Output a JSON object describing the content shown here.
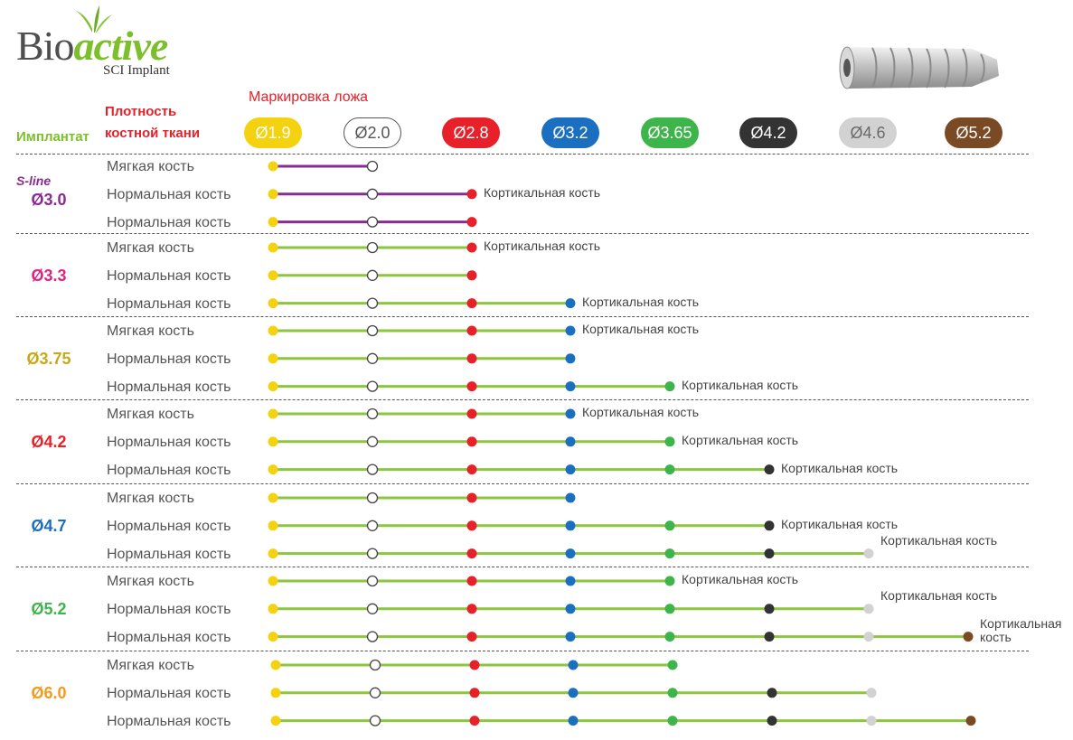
{
  "logo": {
    "word_bio": "Bio",
    "word_active": "active",
    "subtitle": "SCI Implant"
  },
  "headers": {
    "marking": "Маркировка ложа",
    "density_line1": "Плотность",
    "density_line2": "костной ткани",
    "implant": "Имплантат"
  },
  "drills": [
    {
      "label": "Ø1.9",
      "color": "#f5d20f",
      "text_color": "#ffffff"
    },
    {
      "label": "Ø2.0",
      "color": "#ffffff",
      "text_color": "#555555",
      "border": "#555555"
    },
    {
      "label": "Ø2.8",
      "color": "#e8202a",
      "text_color": "#ffffff"
    },
    {
      "label": "Ø3.2",
      "color": "#1b6fc0",
      "text_color": "#ffffff"
    },
    {
      "label": "Ø3.65",
      "color": "#3db54a",
      "text_color": "#ffffff"
    },
    {
      "label": "Ø4.2",
      "color": "#333333",
      "text_color": "#ffffff"
    },
    {
      "label": "Ø4.6",
      "color": "#d2d2d2",
      "text_color": "#6a6a6a"
    },
    {
      "label": "Ø5.2",
      "color": "#7a4a24",
      "text_color": "#ffffff"
    }
  ],
  "groups": [
    {
      "label": "Ø3.0",
      "prefix": "S-line",
      "color": "#8a2b93",
      "line_color": "#8a2b93",
      "rows": [
        {
          "bone": "Мягкая кость",
          "drills": 2,
          "cortical": ""
        },
        {
          "bone": "Нормальная кость",
          "drills": 3,
          "cortical": "Кортикальная кость"
        },
        {
          "bone": "Нормальная кость",
          "drills": 3,
          "cortical": ""
        }
      ]
    },
    {
      "label": "Ø3.3",
      "color": "#e0237d",
      "line_color": "#8cc63f",
      "rows": [
        {
          "bone": "Мягкая кость",
          "drills": 3,
          "cortical": "Кортикальная кость"
        },
        {
          "bone": "Нормальная кость",
          "drills": 3,
          "cortical": ""
        },
        {
          "bone": "Нормальная кость",
          "drills": 4,
          "cortical": "Кортикальная кость"
        }
      ]
    },
    {
      "label": "Ø3.75",
      "color": "#c9a818",
      "line_color": "#8cc63f",
      "rows": [
        {
          "bone": "Мягкая кость",
          "drills": 4,
          "cortical": "Кортикальная кость"
        },
        {
          "bone": "Нормальная кость",
          "drills": 4,
          "cortical": ""
        },
        {
          "bone": "Нормальная кость",
          "drills": 5,
          "cortical": "Кортикальная кость"
        }
      ]
    },
    {
      "label": "Ø4.2",
      "color": "#e8202a",
      "line_color": "#8cc63f",
      "rows": [
        {
          "bone": "Мягкая кость",
          "drills": 4,
          "cortical": "Кортикальная кость"
        },
        {
          "bone": "Нормальная кость",
          "drills": 5,
          "cortical": "Кортикальная кость"
        },
        {
          "bone": "Нормальная кость",
          "drills": 6,
          "cortical": "Кортикальная кость"
        }
      ]
    },
    {
      "label": "Ø4.7",
      "color": "#1b6fc0",
      "line_color": "#8cc63f",
      "rows": [
        {
          "bone": "Мягкая кость",
          "drills": 4,
          "cortical": ""
        },
        {
          "bone": "Нормальная кость",
          "drills": 6,
          "cortical": "Кортикальная кость"
        },
        {
          "bone": "Нормальная кость",
          "drills": 7,
          "cortical": "Кортикальная кость"
        }
      ]
    },
    {
      "label": "Ø5.2",
      "color": "#3db54a",
      "line_color": "#8cc63f",
      "rows": [
        {
          "bone": "Мягкая кость",
          "drills": 5,
          "cortical": "Кортикальная кость"
        },
        {
          "bone": "Нормальная кость",
          "drills": 7,
          "cortical": "Кортикальная кость"
        },
        {
          "bone": "Нормальная кость",
          "drills": 8,
          "cortical": "Кортикальная кость"
        }
      ]
    },
    {
      "label": "Ø6.0",
      "color": "#f39a1e",
      "line_color": "#8cc63f",
      "rows": [
        {
          "bone": "Мягкая кость",
          "drills": 5,
          "cortical": ""
        },
        {
          "bone": "Нормальная кость",
          "drills": 7,
          "cortical": ""
        },
        {
          "bone": "Нормальная кость",
          "drills": 8,
          "cortical": ""
        }
      ]
    }
  ]
}
